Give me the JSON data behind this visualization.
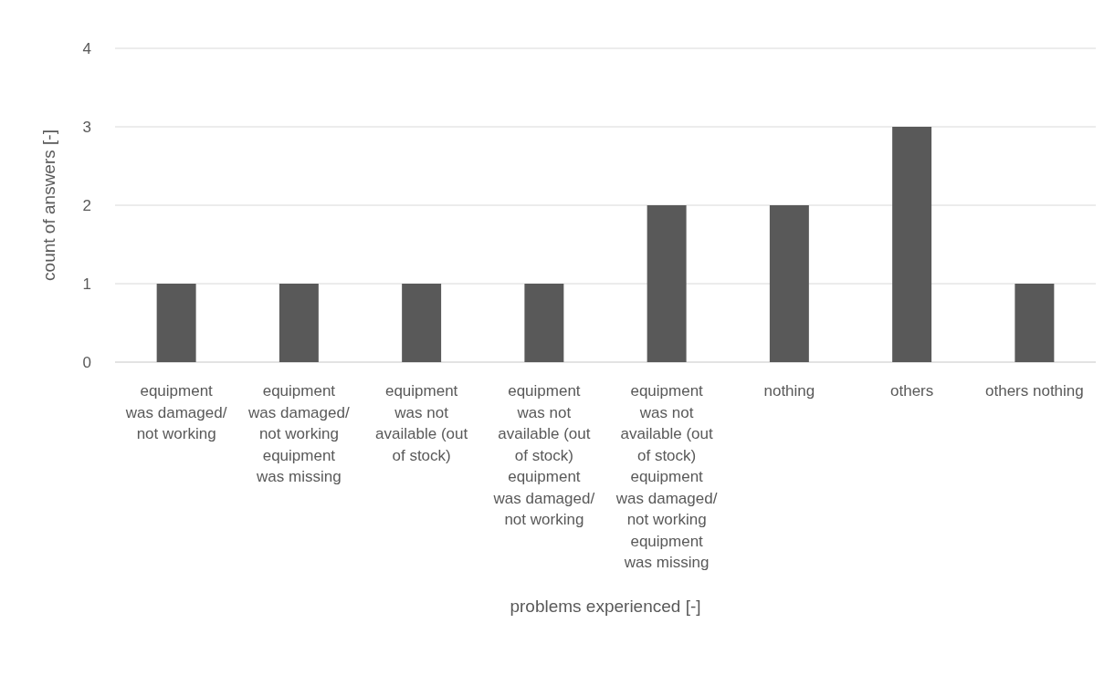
{
  "chart_data": {
    "type": "bar",
    "xlabel": "problems experienced [-]",
    "ylabel": "count of answers [-]",
    "categories": [
      "equipment was damaged/ not working",
      "equipment was damaged/ not working equipment was missing",
      "equipment was not available (out of stock)",
      "equipment was not available (out of stock) equipment was damaged/ not working",
      "equipment was not available (out of stock) equipment was damaged/ not working equipment was missing",
      "nothing",
      "others",
      "others nothing"
    ],
    "values": [
      1,
      1,
      1,
      1,
      2,
      2,
      3,
      1
    ],
    "color": "#595959",
    "ylim": [
      0,
      4
    ],
    "yticks": [
      0,
      1,
      2,
      3,
      4
    ],
    "grid": "y"
  }
}
